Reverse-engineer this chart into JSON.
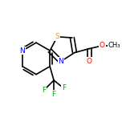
{
  "background": "#ffffff",
  "bond_color": "#000000",
  "bond_lw": 1.2,
  "atom_colors": {
    "S": "#e8a000",
    "N": "#0000ff",
    "O": "#ff0000",
    "F": "#00aa00",
    "C": "#000000"
  },
  "font_size": 6.5,
  "figsize": [
    1.52,
    1.52
  ],
  "dpi": 100,
  "xlim": [
    -1.1,
    1.3
  ],
  "ylim": [
    -1.0,
    1.0
  ]
}
